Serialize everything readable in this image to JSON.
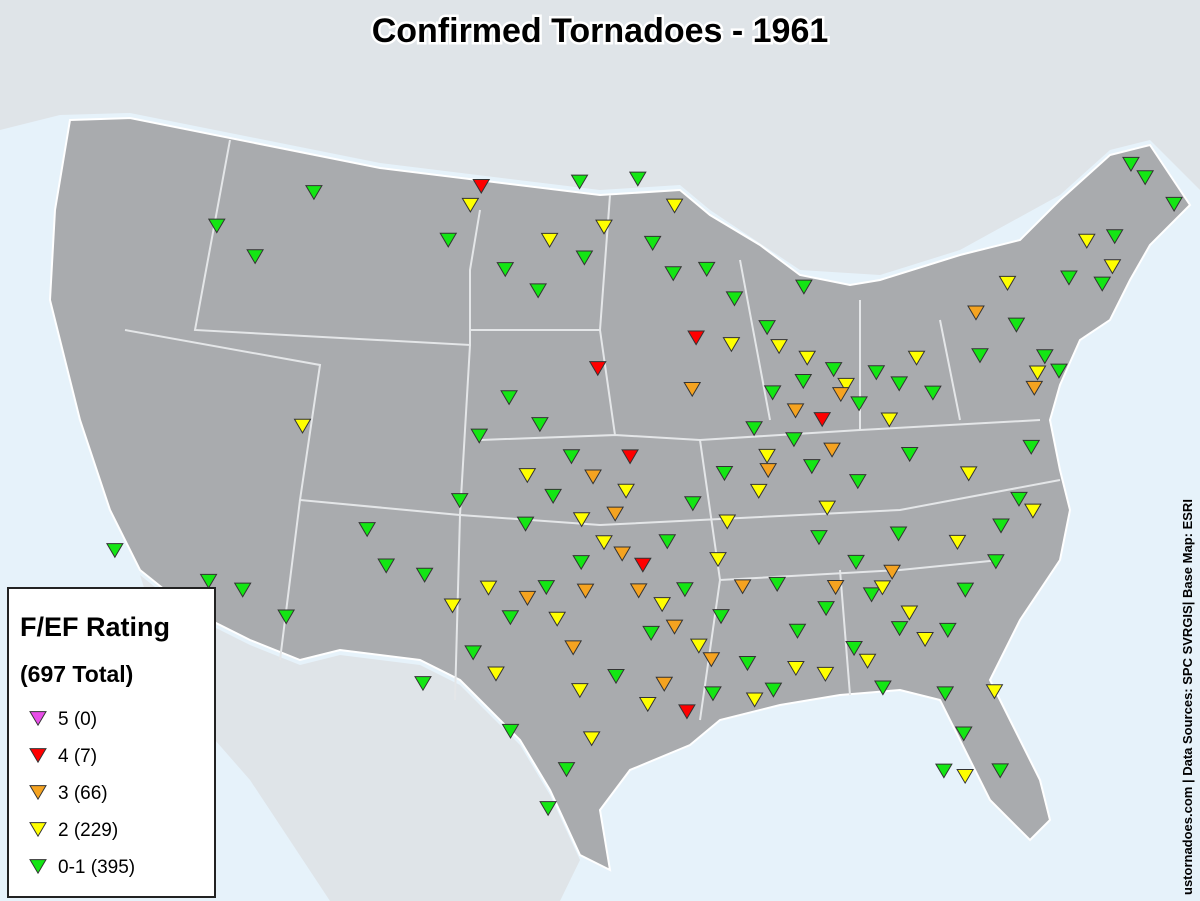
{
  "header": {
    "title": "Confirmed Tornadoes - 1961"
  },
  "source": "ustornadoes.com | Data Sources: SPC SVRGIS| Base Map: ESRI",
  "legend": {
    "title": "F/EF Rating",
    "total": "(697 Total)"
  },
  "map": {
    "projection": "albers",
    "ratings": [
      {
        "label": "5 (0)",
        "color": "#e84ee8",
        "points": []
      },
      {
        "label": "4 (7)",
        "color": "#ff0000",
        "points": [
          [
            -102.5,
            48.6
          ],
          [
            -96.3,
            42.3
          ],
          [
            -91.5,
            43.3
          ],
          [
            -94.8,
            39.2
          ],
          [
            -85.8,
            40.1
          ],
          [
            -94.3,
            35.4
          ],
          [
            -92.6,
            30.2
          ]
        ]
      },
      {
        "label": "3 (66)",
        "color": "#f5a320",
        "points": [
          [
            -96.5,
            38.5
          ],
          [
            -95.5,
            37.2
          ],
          [
            -95.2,
            35.8
          ],
          [
            -96.8,
            34.5
          ],
          [
            -94.5,
            34.5
          ],
          [
            -93.0,
            33.2
          ],
          [
            -91.5,
            32.0
          ],
          [
            -93.5,
            31.2
          ],
          [
            -97.3,
            32.5
          ],
          [
            -87.0,
            40.5
          ],
          [
            -84.8,
            40.9
          ],
          [
            -88.5,
            38.5
          ],
          [
            -86.0,
            34.2
          ],
          [
            -83.5,
            34.5
          ],
          [
            -77.8,
            43.0
          ],
          [
            -75.8,
            40.0
          ],
          [
            -99.3,
            34.2
          ],
          [
            -90.0,
            34.5
          ],
          [
            -85.5,
            39.0
          ],
          [
            -91.8,
            41.5
          ]
        ]
      },
      {
        "label": "2 (229)",
        "color": "#ffff00",
        "points": [
          [
            -110.0,
            39.5
          ],
          [
            -103.0,
            47.9
          ],
          [
            -98.8,
            46.8
          ],
          [
            -96.0,
            47.3
          ],
          [
            -92.3,
            48.0
          ],
          [
            -89.8,
            43.0
          ],
          [
            -87.5,
            42.8
          ],
          [
            -86.2,
            42.3
          ],
          [
            -84.5,
            41.2
          ],
          [
            -82.7,
            39.8
          ],
          [
            -81.0,
            41.8
          ],
          [
            -76.0,
            43.8
          ],
          [
            -71.7,
            44.6
          ],
          [
            -70.8,
            43.5
          ],
          [
            -75.5,
            40.5
          ],
          [
            -99.5,
            38.5
          ],
          [
            -97.0,
            37.0
          ],
          [
            -96.0,
            36.2
          ],
          [
            -98.0,
            33.5
          ],
          [
            -101.0,
            34.5
          ],
          [
            -102.5,
            33.8
          ],
          [
            -100.5,
            31.5
          ],
          [
            -97.0,
            31.0
          ],
          [
            -96.5,
            29.3
          ],
          [
            -94.2,
            30.5
          ],
          [
            -92.0,
            32.5
          ],
          [
            -93.5,
            34.0
          ],
          [
            -91.0,
            35.5
          ],
          [
            -90.5,
            36.8
          ],
          [
            -89.0,
            37.8
          ],
          [
            -88.5,
            39.0
          ],
          [
            -86.0,
            37.0
          ],
          [
            -84.0,
            34.0
          ],
          [
            -83.0,
            33.0
          ],
          [
            -82.5,
            32.0
          ],
          [
            -85.0,
            31.5
          ],
          [
            -86.8,
            31.2
          ],
          [
            -88.0,
            31.5
          ],
          [
            -89.8,
            30.5
          ],
          [
            -80.5,
            35.2
          ],
          [
            -77.0,
            35.8
          ],
          [
            -80.0,
            29.8
          ],
          [
            -81.7,
            27.0
          ],
          [
            -79.5,
            37.5
          ],
          [
            -95.0,
            38.0
          ]
        ]
      },
      {
        "label": "0-1 (395)",
        "color": "#14e614",
        "points": [
          [
            -111.2,
            47.7
          ],
          [
            -115.8,
            45.9
          ],
          [
            -113.6,
            45.1
          ],
          [
            -97.3,
            48.9
          ],
          [
            -94.2,
            49.0
          ],
          [
            -104.0,
            46.6
          ],
          [
            -101.0,
            45.7
          ],
          [
            -99.3,
            45.0
          ],
          [
            -97.0,
            46.2
          ],
          [
            -93.5,
            46.7
          ],
          [
            -92.5,
            45.6
          ],
          [
            -90.8,
            45.7
          ],
          [
            -89.5,
            44.6
          ],
          [
            -86.0,
            44.8
          ],
          [
            -88.0,
            43.5
          ],
          [
            -100.5,
            41.2
          ],
          [
            -101.8,
            39.8
          ],
          [
            -99.0,
            40.3
          ],
          [
            -97.5,
            39.2
          ],
          [
            -98.3,
            37.8
          ],
          [
            -99.5,
            36.8
          ],
          [
            -97.0,
            35.5
          ],
          [
            -98.5,
            34.6
          ],
          [
            -100.0,
            33.5
          ],
          [
            -101.5,
            32.2
          ],
          [
            -103.5,
            31.0
          ],
          [
            -99.8,
            29.5
          ],
          [
            -97.5,
            28.2
          ],
          [
            -98.2,
            26.8
          ],
          [
            -95.5,
            31.5
          ],
          [
            -94.0,
            33.0
          ],
          [
            -92.5,
            34.5
          ],
          [
            -91.0,
            33.5
          ],
          [
            -90.0,
            31.8
          ],
          [
            -89.0,
            30.8
          ],
          [
            -91.5,
            30.8
          ],
          [
            -93.2,
            36.2
          ],
          [
            -92.0,
            37.5
          ],
          [
            -90.5,
            38.5
          ],
          [
            -89.0,
            40.0
          ],
          [
            -88.0,
            41.2
          ],
          [
            -87.2,
            39.5
          ],
          [
            -86.5,
            41.5
          ],
          [
            -85.0,
            41.8
          ],
          [
            -84.0,
            40.5
          ],
          [
            -83.0,
            41.5
          ],
          [
            -82.0,
            41.0
          ],
          [
            -80.5,
            40.5
          ],
          [
            -78.0,
            41.5
          ],
          [
            -76.0,
            42.3
          ],
          [
            -75.0,
            41.0
          ],
          [
            -74.5,
            40.4
          ],
          [
            -73.0,
            43.5
          ],
          [
            -71.5,
            43.0
          ],
          [
            -70.3,
            44.5
          ],
          [
            -68.5,
            46.8
          ],
          [
            -68.0,
            46.2
          ],
          [
            -67.0,
            45.0
          ],
          [
            -76.5,
            38.0
          ],
          [
            -77.5,
            36.3
          ],
          [
            -78.5,
            35.5
          ],
          [
            -79.0,
            34.3
          ],
          [
            -80.5,
            33.5
          ],
          [
            -81.5,
            32.2
          ],
          [
            -83.5,
            32.5
          ],
          [
            -84.5,
            33.8
          ],
          [
            -85.5,
            32.0
          ],
          [
            -86.5,
            33.5
          ],
          [
            -87.8,
            32.8
          ],
          [
            -88.5,
            34.5
          ],
          [
            -86.5,
            36.0
          ],
          [
            -85.0,
            35.0
          ],
          [
            -83.0,
            35.8
          ],
          [
            -84.5,
            37.8
          ],
          [
            -86.5,
            38.5
          ],
          [
            -82.0,
            38.5
          ],
          [
            -81.5,
            28.5
          ],
          [
            -80.3,
            27.0
          ],
          [
            -82.5,
            27.3
          ],
          [
            -82.0,
            30.0
          ],
          [
            -84.5,
            30.5
          ],
          [
            -117.2,
            34.0
          ],
          [
            -111.5,
            33.5
          ],
          [
            -109.5,
            32.8
          ],
          [
            -105.5,
            35.0
          ],
          [
            -106.5,
            36.2
          ],
          [
            -103.8,
            34.8
          ],
          [
            -102.5,
            37.5
          ],
          [
            -113.0,
            33.6
          ]
        ]
      }
    ]
  }
}
